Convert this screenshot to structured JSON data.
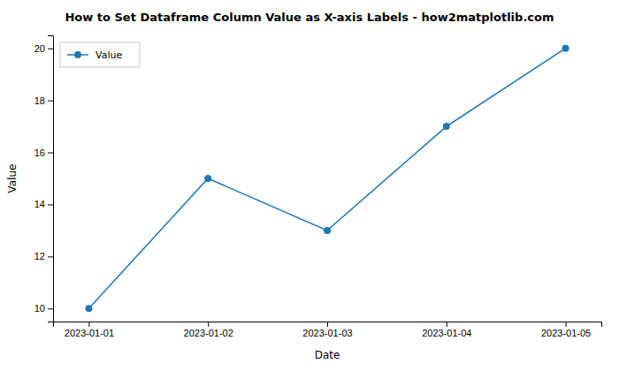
{
  "chart_data": {
    "type": "line",
    "title": "How to Set Dataframe Column Value as X-axis Labels - how2matplotlib.com",
    "x_label": "Date",
    "y_label": "Value",
    "x": [
      "2023-01-01",
      "2023-01-02",
      "2023-01-03",
      "2023-01-04",
      "2023-01-05"
    ],
    "series": [
      {
        "name": "Value",
        "color": "#1f77b4",
        "marker": "circle",
        "values": [
          10,
          15,
          13,
          17,
          20
        ]
      }
    ],
    "ylim": [
      9.5,
      20.5
    ],
    "yticks": [
      10,
      12,
      14,
      16,
      18,
      20
    ],
    "grid": false,
    "legend": "upper left"
  }
}
